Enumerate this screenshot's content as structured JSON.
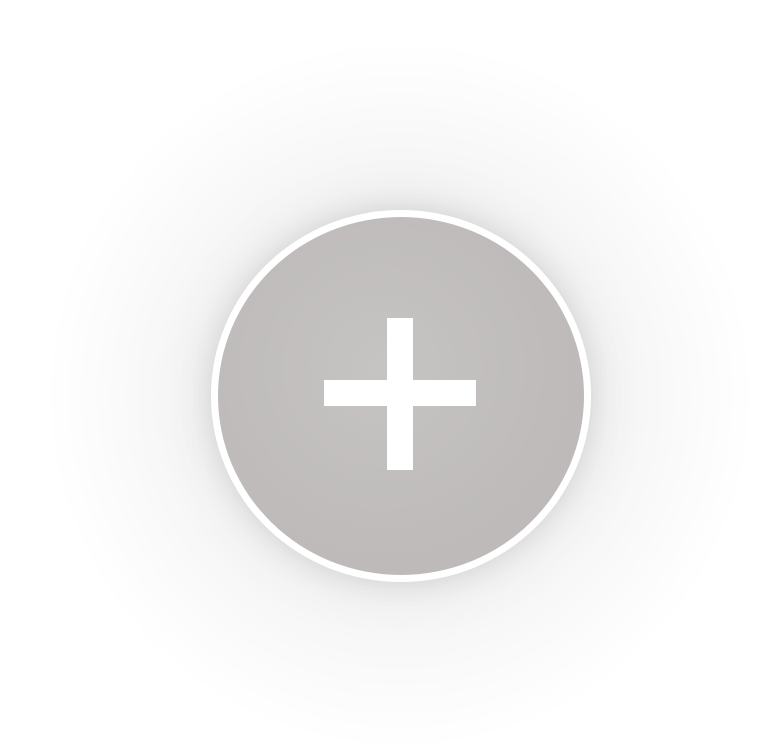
{
  "fab": {
    "icon": "plus-icon",
    "fill_color": "#bdbab9",
    "ring_color": "#ffffff",
    "icon_color": "#ffffff",
    "background_color": "#ffffff"
  }
}
